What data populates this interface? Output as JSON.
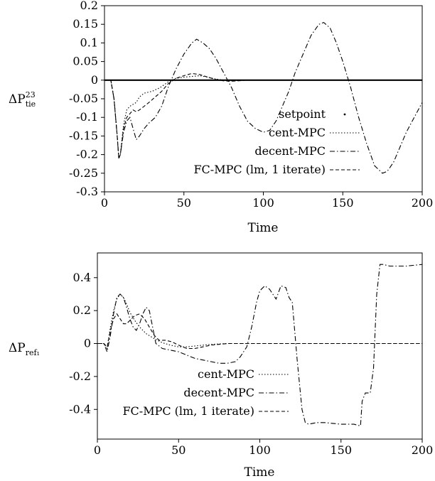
{
  "chart_data": [
    {
      "type": "line",
      "xlabel": "Time",
      "ylabel": {
        "base": "ΔP",
        "sup": "23",
        "sub": "tie"
      },
      "xlim": [
        0,
        200
      ],
      "ylim": [
        -0.3,
        0.2
      ],
      "xticks": [
        "0",
        "50",
        "100",
        "150",
        "200"
      ],
      "yticks": [
        "0.2",
        "0.15",
        "0.1",
        "0.05",
        "0",
        "-0.05",
        "-0.1",
        "-0.15",
        "-0.2",
        "-0.25",
        "-0.3"
      ],
      "legend_position": "bottom-right",
      "series": [
        {
          "name": "setpoint",
          "style": "dot",
          "x": [
            0,
            200
          ],
          "y": [
            0,
            0
          ]
        },
        {
          "name": "cent-MPC",
          "style": "dotted",
          "x": [
            0,
            4,
            6,
            8,
            9,
            10,
            12,
            14,
            16,
            18,
            20,
            22,
            25,
            30,
            35,
            40,
            45,
            50,
            55,
            60,
            65,
            70,
            75,
            80,
            90,
            100,
            120,
            150,
            200
          ],
          "y": [
            0,
            0,
            -0.05,
            -0.15,
            -0.21,
            -0.2,
            -0.12,
            -0.08,
            -0.07,
            -0.065,
            -0.06,
            -0.045,
            -0.035,
            -0.03,
            -0.02,
            -0.005,
            0.005,
            0.008,
            0.01,
            0.012,
            0.008,
            0.003,
            0,
            -0.002,
            0,
            0,
            0,
            0,
            0
          ]
        },
        {
          "name": "decent-MPC",
          "style": "dashdot",
          "x": [
            0,
            4,
            6,
            8,
            9,
            10,
            12,
            14,
            16,
            18,
            20,
            22,
            25,
            28,
            32,
            36,
            40,
            45,
            50,
            55,
            58,
            62,
            66,
            70,
            75,
            80,
            85,
            90,
            95,
            100,
            104,
            108,
            112,
            116,
            120,
            125,
            130,
            135,
            138,
            142,
            146,
            150,
            155,
            160,
            165,
            170,
            175,
            178,
            182,
            186,
            190,
            195,
            200
          ],
          "y": [
            0,
            0,
            -0.05,
            -0.15,
            -0.21,
            -0.2,
            -0.14,
            -0.11,
            -0.1,
            -0.13,
            -0.16,
            -0.15,
            -0.13,
            -0.115,
            -0.1,
            -0.07,
            -0.02,
            0.03,
            0.07,
            0.1,
            0.11,
            0.1,
            0.085,
            0.06,
            0.02,
            -0.02,
            -0.07,
            -0.11,
            -0.13,
            -0.14,
            -0.135,
            -0.11,
            -0.07,
            -0.03,
            0.02,
            0.07,
            0.12,
            0.15,
            0.155,
            0.14,
            0.1,
            0.05,
            -0.02,
            -0.1,
            -0.17,
            -0.23,
            -0.25,
            -0.245,
            -0.22,
            -0.18,
            -0.14,
            -0.1,
            -0.06
          ]
        },
        {
          "name": "FC-MPC (lm, 1 iterate)",
          "style": "dashed",
          "x": [
            0,
            4,
            6,
            8,
            9,
            10,
            12,
            14,
            16,
            18,
            20,
            22,
            25,
            28,
            32,
            36,
            40,
            45,
            50,
            55,
            60,
            65,
            70,
            75,
            80,
            90,
            100,
            120,
            150,
            200
          ],
          "y": [
            0,
            0,
            -0.05,
            -0.15,
            -0.21,
            -0.2,
            -0.13,
            -0.1,
            -0.09,
            -0.08,
            -0.085,
            -0.08,
            -0.07,
            -0.06,
            -0.045,
            -0.03,
            -0.01,
            0.005,
            0.012,
            0.018,
            0.015,
            0.008,
            0.002,
            -0.002,
            -0.003,
            0,
            0,
            0,
            0,
            0
          ]
        }
      ]
    },
    {
      "type": "line",
      "xlabel": "Time",
      "ylabel": {
        "base": "ΔP",
        "sub": "ref₁"
      },
      "xlim": [
        0,
        200
      ],
      "ylim": [
        -0.58,
        0.55
      ],
      "xticks": [
        "0",
        "50",
        "100",
        "150",
        "200"
      ],
      "yticks": [
        "0.4",
        "0.2",
        "0",
        "-0.2",
        "-0.4"
      ],
      "ytick_values": [
        0.4,
        0.2,
        0,
        -0.2,
        -0.4
      ],
      "legend_position": "bottom-left",
      "series": [
        {
          "name": "cent-MPC",
          "style": "dotted",
          "x": [
            0,
            4,
            6,
            8,
            10,
            12,
            14,
            16,
            18,
            20,
            23,
            26,
            30,
            35,
            40,
            45,
            50,
            55,
            60,
            65,
            70,
            80,
            90,
            100,
            120,
            150,
            200
          ],
          "y": [
            0,
            0,
            -0.03,
            0.1,
            0.2,
            0.27,
            0.3,
            0.28,
            0.24,
            0.19,
            0.14,
            0.1,
            0.06,
            0.03,
            0.005,
            -0.01,
            -0.02,
            -0.02,
            -0.015,
            -0.01,
            -0.005,
            0,
            0,
            0,
            0,
            0,
            0
          ]
        },
        {
          "name": "decent-MPC",
          "style": "dashdot",
          "x": [
            0,
            4,
            6,
            8,
            10,
            12,
            14,
            16,
            18,
            20,
            22,
            24,
            26,
            28,
            30,
            32,
            34,
            36,
            40,
            45,
            50,
            55,
            60,
            65,
            70,
            75,
            80,
            85,
            88,
            92,
            95,
            98,
            100,
            103,
            106,
            110,
            113,
            116,
            118,
            120,
            123,
            126,
            128,
            130,
            135,
            140,
            150,
            158,
            162,
            163,
            165,
            168,
            170,
            172,
            174,
            176,
            180,
            190,
            200
          ],
          "y": [
            0,
            0,
            -0.05,
            0.05,
            0.18,
            0.28,
            0.3,
            0.28,
            0.22,
            0.15,
            0.1,
            0.08,
            0.12,
            0.18,
            0.22,
            0.2,
            0.1,
            0.0,
            -0.03,
            -0.04,
            -0.05,
            -0.07,
            -0.09,
            -0.1,
            -0.11,
            -0.12,
            -0.12,
            -0.11,
            -0.08,
            -0.02,
            0.1,
            0.25,
            0.32,
            0.35,
            0.33,
            0.27,
            0.35,
            0.34,
            0.28,
            0.25,
            -0.1,
            -0.4,
            -0.48,
            -0.49,
            -0.48,
            -0.48,
            -0.49,
            -0.49,
            -0.5,
            -0.35,
            -0.3,
            -0.3,
            -0.15,
            0.3,
            0.48,
            0.48,
            0.47,
            0.47,
            0.48
          ]
        },
        {
          "name": "FC-MPC (lm, 1 iterate)",
          "style": "dashed",
          "x": [
            0,
            4,
            6,
            8,
            10,
            12,
            14,
            16,
            18,
            20,
            23,
            26,
            29,
            32,
            35,
            38,
            42,
            46,
            50,
            55,
            60,
            65,
            70,
            80,
            90,
            100,
            120,
            150,
            200
          ],
          "y": [
            0,
            0,
            -0.02,
            0.08,
            0.15,
            0.18,
            0.15,
            0.12,
            0.12,
            0.14,
            0.17,
            0.18,
            0.15,
            0.1,
            0.05,
            0.02,
            0.02,
            0.01,
            -0.01,
            -0.03,
            -0.03,
            -0.02,
            -0.01,
            0,
            0,
            0,
            0,
            0,
            0
          ]
        }
      ]
    }
  ]
}
